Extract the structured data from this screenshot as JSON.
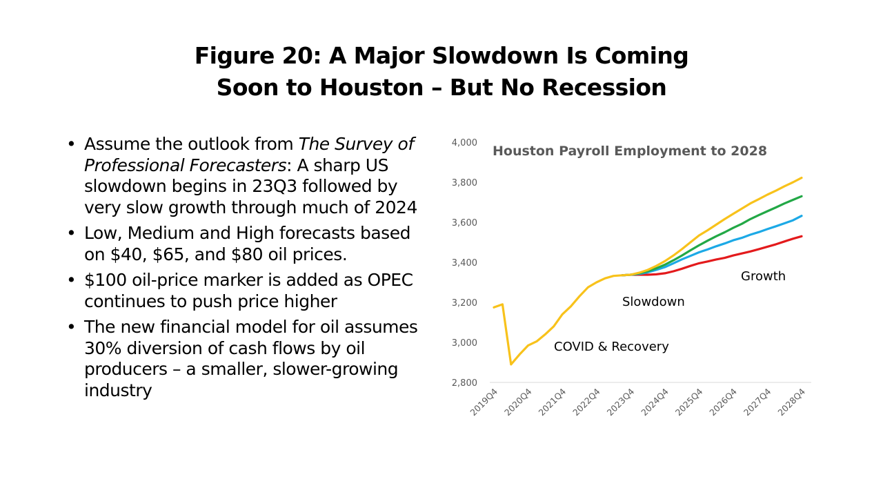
{
  "slide": {
    "title_line1": "Figure 20: A Major Slowdown Is Coming",
    "title_line2": "Soon to Houston – But No Recession"
  },
  "bullets": [
    {
      "pre": "Assume the outlook from ",
      "italic": "The Survey of Professional Forecasters",
      "post": ": A sharp US slowdown begins in 23Q3 followed by very slow growth through much of 2024"
    },
    {
      "pre": "Low, Medium and High forecasts based on $40, $65, and $80 oil prices.",
      "italic": "",
      "post": ""
    },
    {
      "pre": "$100 oil-price marker is added as OPEC continues to push price higher",
      "italic": "",
      "post": ""
    },
    {
      "pre": "The new financial model for oil assumes 30% diversion of cash flows by oil producers – a smaller, slower-growing industry",
      "italic": "",
      "post": ""
    }
  ],
  "chart_data": {
    "type": "line",
    "title": "Houston Payroll Employment to 2028",
    "ylim": [
      2800,
      4000
    ],
    "yticks": [
      "2,800",
      "3,000",
      "3,200",
      "3,400",
      "3,600",
      "3,800",
      "4,000"
    ],
    "xticks": [
      "2019Q4",
      "2020Q4",
      "2021Q4",
      "2022Q4",
      "2023Q4",
      "2024Q4",
      "2025Q4",
      "2026Q4",
      "2027Q4",
      "2028Q4"
    ],
    "grid": false,
    "legend": "none",
    "annotations": [
      "COVID & Recovery",
      "Slowdown",
      "Growth"
    ],
    "x": [
      "2019Q4",
      "2020Q1",
      "2020Q2",
      "2020Q3",
      "2020Q4",
      "2021Q1",
      "2021Q2",
      "2021Q3",
      "2021Q4",
      "2022Q1",
      "2022Q2",
      "2022Q3",
      "2022Q4",
      "2023Q1",
      "2023Q2",
      "2023Q3",
      "2023Q4",
      "2024Q1",
      "2024Q2",
      "2024Q3",
      "2024Q4",
      "2025Q1",
      "2025Q2",
      "2025Q3",
      "2025Q4",
      "2026Q1",
      "2026Q2",
      "2026Q3",
      "2026Q4",
      "2027Q1",
      "2027Q2",
      "2027Q3",
      "2027Q4",
      "2028Q1",
      "2028Q2",
      "2028Q3",
      "2028Q4"
    ],
    "history_x_end": 15,
    "series": [
      {
        "color": "#E31A1C",
        "values": [
          3175,
          3190,
          2890,
          2940,
          2985,
          3005,
          3040,
          3080,
          3140,
          3180,
          3230,
          3275,
          3300,
          3320,
          3332,
          3335,
          3338,
          3338,
          3338,
          3340,
          3345,
          3355,
          3368,
          3382,
          3395,
          3404,
          3414,
          3422,
          3434,
          3444,
          3454,
          3466,
          3478,
          3490,
          3504,
          3518,
          3530
        ]
      },
      {
        "color": "#1CA9E6",
        "values": [
          3175,
          3190,
          2890,
          2940,
          2985,
          3005,
          3040,
          3080,
          3140,
          3180,
          3230,
          3275,
          3300,
          3320,
          3332,
          3335,
          3338,
          3342,
          3350,
          3362,
          3376,
          3395,
          3415,
          3432,
          3450,
          3464,
          3480,
          3494,
          3510,
          3522,
          3538,
          3551,
          3566,
          3580,
          3595,
          3610,
          3632
        ]
      },
      {
        "color": "#22A846",
        "values": [
          3175,
          3190,
          2890,
          2940,
          2985,
          3005,
          3040,
          3080,
          3140,
          3180,
          3230,
          3275,
          3300,
          3320,
          3332,
          3335,
          3338,
          3345,
          3356,
          3370,
          3388,
          3410,
          3434,
          3460,
          3485,
          3508,
          3530,
          3550,
          3572,
          3592,
          3616,
          3636,
          3655,
          3674,
          3694,
          3712,
          3730
        ]
      },
      {
        "color": "#F8C21B",
        "values": [
          3175,
          3190,
          2890,
          2940,
          2985,
          3005,
          3040,
          3080,
          3140,
          3180,
          3230,
          3275,
          3300,
          3320,
          3332,
          3335,
          3338,
          3348,
          3362,
          3382,
          3406,
          3434,
          3466,
          3500,
          3534,
          3560,
          3588,
          3616,
          3642,
          3668,
          3694,
          3716,
          3738,
          3758,
          3780,
          3800,
          3822
        ]
      }
    ]
  }
}
